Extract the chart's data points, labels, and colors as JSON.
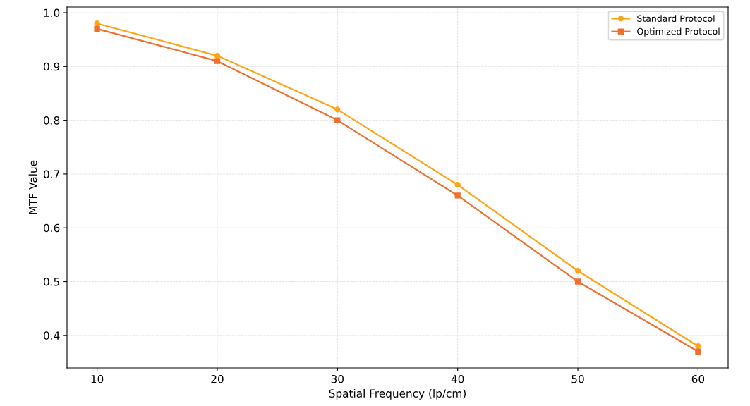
{
  "chart_data": {
    "type": "line",
    "xlabel": "Spatial Frequency (lp/cm)",
    "ylabel": "MTF Value",
    "x": [
      10,
      20,
      30,
      40,
      50,
      60
    ],
    "series": [
      {
        "name": "Standard Protocol",
        "color": "#ffa515",
        "marker": "circle",
        "values": [
          0.98,
          0.92,
          0.82,
          0.68,
          0.52,
          0.38
        ]
      },
      {
        "name": "Optimized Protocol",
        "color": "#f07030",
        "marker": "square",
        "values": [
          0.97,
          0.91,
          0.8,
          0.66,
          0.5,
          0.37
        ]
      }
    ],
    "xlim": [
      7.5,
      62.5
    ],
    "xticks": [
      10,
      20,
      30,
      40,
      50,
      60
    ],
    "ylim": [
      0.3395,
      1.0105
    ],
    "yticks": [
      {
        "value": 0.4,
        "label": "0.4"
      },
      {
        "value": 0.5,
        "label": "0.5"
      },
      {
        "value": 0.6,
        "label": "0.6"
      },
      {
        "value": 0.7,
        "label": "0.7"
      },
      {
        "value": 0.8,
        "label": "0.8"
      },
      {
        "value": 0.9,
        "label": "0.9"
      },
      {
        "value": 1.0,
        "label": "1.0"
      }
    ],
    "grid": true,
    "legend": "top right",
    "line_style": "solid"
  }
}
